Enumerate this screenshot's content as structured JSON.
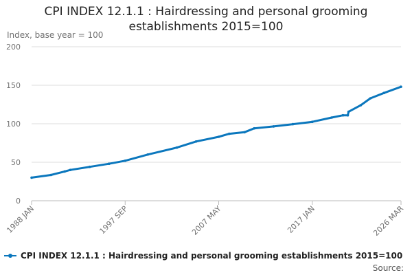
{
  "header": {
    "title_line1": "CPI INDEX 12.1.1 : Hairdressing and personal grooming",
    "title_line2": "establishments 2015=100"
  },
  "footer": {
    "source_label": "Source:"
  },
  "colors": {
    "series": "#0b77bd",
    "grid": "#dddddd",
    "axis": "#bbbbbb"
  },
  "chart_data": {
    "type": "line",
    "title": "CPI INDEX 12.1.1 : Hairdressing and personal grooming establishments 2015=100",
    "ylabel": "Index, base year = 100",
    "xlabel": "",
    "ylim": [
      0,
      200
    ],
    "yticks": [
      0,
      50,
      100,
      150,
      200
    ],
    "xlim": [
      "1988-01",
      "2026-03"
    ],
    "xtick_labels": [
      "1988 JAN",
      "1997 SEP",
      "2007 MAY",
      "2017 JAN",
      "2026 MAR"
    ],
    "xtick_dates": [
      "1988-01",
      "1997-09",
      "2007-05",
      "2017-01",
      "2026-03"
    ],
    "grid": true,
    "legend": "bottom",
    "series": [
      {
        "name": "CPI INDEX 12.1.1 : Hairdressing and personal grooming establishments 2015=100",
        "points": [
          [
            "1988-01",
            30.0
          ],
          [
            "1990-01",
            33.5
          ],
          [
            "1991-06",
            38.0
          ],
          [
            "1992-01",
            40.0
          ],
          [
            "1994-01",
            44.0
          ],
          [
            "1996-01",
            48.0
          ],
          [
            "1997-09",
            52.0
          ],
          [
            "2000-01",
            60.0
          ],
          [
            "2003-01",
            69.0
          ],
          [
            "2005-01",
            77.0
          ],
          [
            "2007-05",
            83.0
          ],
          [
            "2008-06",
            87.0
          ],
          [
            "2010-01",
            89.0
          ],
          [
            "2011-01",
            94.0
          ],
          [
            "2013-01",
            96.5
          ],
          [
            "2015-01",
            99.5
          ],
          [
            "2017-01",
            102.5
          ],
          [
            "2019-01",
            108.0
          ],
          [
            "2020-03",
            111.0
          ],
          [
            "2020-09",
            111.0
          ],
          [
            "2020-10",
            115.5
          ],
          [
            "2022-01",
            124.0
          ],
          [
            "2023-01",
            133.0
          ],
          [
            "2024-06",
            140.0
          ],
          [
            "2026-03",
            148.0
          ]
        ]
      }
    ]
  }
}
